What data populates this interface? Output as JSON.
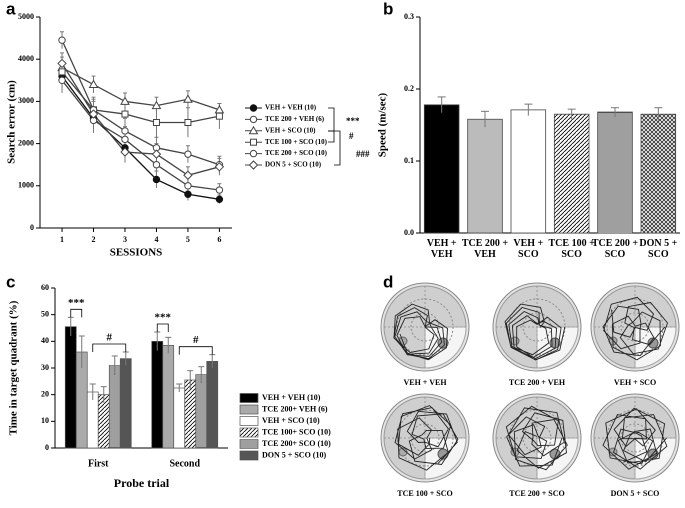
{
  "chart_data": [
    {
      "type": "line",
      "panel": "a",
      "ylabel": "Search error (cm)",
      "xlabel": "SESSIONS",
      "x": [
        1,
        2,
        3,
        4,
        5,
        6
      ],
      "xlim": [
        0.3,
        6.4
      ],
      "xticks": [
        1,
        2,
        3,
        4,
        5,
        6
      ],
      "ylim": [
        0,
        5000
      ],
      "yticks": [
        0,
        1000,
        2000,
        3000,
        4000,
        5000
      ],
      "series": [
        {
          "name": "VEH + VEH (10)",
          "color": "#111111",
          "marker": "filled-circle",
          "values": [
            3600,
            2600,
            1900,
            1150,
            800,
            680
          ],
          "errors": [
            250,
            250,
            200,
            200,
            150,
            100
          ]
        },
        {
          "name": "TCE 200 + VEH (6)",
          "color": "#444444",
          "marker": "circle",
          "values": [
            3500,
            2550,
            2100,
            1500,
            1000,
            900
          ],
          "errors": [
            300,
            300,
            300,
            250,
            200,
            150
          ]
        },
        {
          "name": "VEH + SCO (10)",
          "color": "#444444",
          "marker": "triangle",
          "values": [
            3800,
            3400,
            3000,
            2900,
            3050,
            2800
          ],
          "errors": [
            250,
            200,
            200,
            200,
            200,
            150
          ]
        },
        {
          "name": "TCE 100 + SCO (10)",
          "color": "#444444",
          "marker": "square",
          "values": [
            3700,
            2800,
            2700,
            2500,
            2500,
            2650
          ],
          "errors": [
            250,
            300,
            250,
            350,
            350,
            300
          ]
        },
        {
          "name": "TCE 200 + SCO (10)",
          "color": "#444444",
          "marker": "circle",
          "values": [
            4450,
            2800,
            2300,
            1900,
            1750,
            1500
          ],
          "errors": [
            200,
            250,
            300,
            250,
            200,
            200
          ]
        },
        {
          "name": "DON 5 + SCO (10)",
          "color": "#444444",
          "marker": "diamond",
          "values": [
            3900,
            2700,
            1800,
            1750,
            1250,
            1450
          ],
          "errors": [
            250,
            300,
            250,
            250,
            200,
            200
          ]
        }
      ],
      "annotations": [
        "***",
        "#",
        "###"
      ]
    },
    {
      "type": "bar",
      "panel": "b",
      "ylabel": "Speed (m/sec)",
      "categories": [
        "VEH + VEH",
        "TCE 200 + VEH",
        "VEH + SCO",
        "TCE 100 + SCO",
        "TCE 200 + SCO",
        "DON 5 + SCO"
      ],
      "values": [
        0.178,
        0.158,
        0.171,
        0.165,
        0.168,
        0.165
      ],
      "errors": [
        0.011,
        0.011,
        0.008,
        0.007,
        0.006,
        0.009
      ],
      "colors": [
        "#000000",
        "#bbbbbb",
        "#ffffff",
        "#000000",
        "#000000",
        "#333333"
      ],
      "patterns": [
        "solid",
        "solid",
        "solid",
        "diagonal",
        "horizontal",
        "crosshatch"
      ],
      "ylim": [
        0,
        0.3
      ],
      "yticks": [
        {
          "value": 0,
          "label": "0.0"
        },
        0.1,
        0.2,
        0.3
      ]
    },
    {
      "type": "grouped_bar",
      "panel": "c",
      "ylabel": "Time in target quadrant (%)",
      "xlabel": "Probe trial",
      "categories": [
        "First",
        "Second"
      ],
      "ylim": [
        0,
        60
      ],
      "yticks": [
        0,
        10,
        20,
        30,
        40,
        50,
        60
      ],
      "series": [
        {
          "name": "VEH + VEH (10)",
          "color": "#000000",
          "pattern": "solid",
          "values": [
            45.5,
            40
          ],
          "errors": [
            3.5,
            3.5
          ]
        },
        {
          "name": "TCE 200+ VEH (6)",
          "color": "#aaaaaa",
          "pattern": "solid",
          "values": [
            36,
            38.5
          ],
          "errors": [
            6,
            3
          ]
        },
        {
          "name": "VEH + SCO (10)",
          "color": "#ffffff",
          "pattern": "solid",
          "values": [
            21,
            22.5
          ],
          "errors": [
            3,
            1.5
          ]
        },
        {
          "name": "TCE 100+ SCO (10)",
          "color": "#000000",
          "pattern": "diagonal",
          "values": [
            20,
            25.5
          ],
          "errors": [
            3,
            3.5
          ]
        },
        {
          "name": "TCE 200+ SCO (10)",
          "color": "#000000",
          "pattern": "horizontal",
          "values": [
            31,
            27.5
          ],
          "errors": [
            3.5,
            3
          ]
        },
        {
          "name": "DON 5 + SCO (10)",
          "color": "#555555",
          "pattern": "solid",
          "values": [
            33.5,
            32.5
          ],
          "errors": [
            2.5,
            2.5
          ]
        }
      ],
      "annotations": [
        "***",
        "#",
        "***",
        "#"
      ]
    }
  ],
  "panel_d": {
    "panel": "d",
    "labels": [
      "VEH + VEH",
      "TCE 200 + VEH",
      "VEH + SCO",
      "TCE 100 + SCO",
      "TCE 200 + SCO",
      "DON 5 + SCO"
    ]
  }
}
